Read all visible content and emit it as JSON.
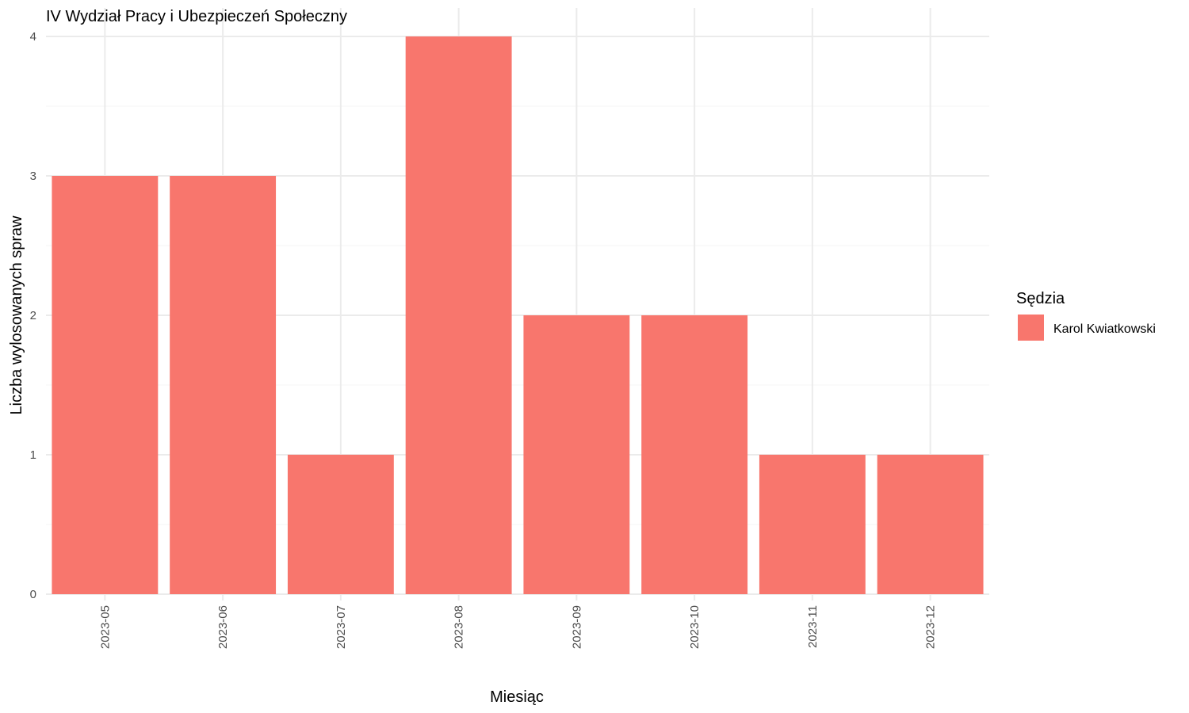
{
  "chart_data": {
    "type": "bar",
    "title": "IV Wydział Pracy i Ubezpieczeń Społeczny",
    "xlabel": "Miesiąc",
    "ylabel": "Liczba wylosowanych spraw",
    "categories": [
      "2023-05",
      "2023-06",
      "2023-07",
      "2023-08",
      "2023-09",
      "2023-10",
      "2023-11",
      "2023-12"
    ],
    "series": [
      {
        "name": "Karol Kwiatkowski",
        "values": [
          3,
          3,
          1,
          4,
          2,
          2,
          1,
          1
        ],
        "color": "#F8766D"
      }
    ],
    "ylim": [
      0,
      4
    ],
    "yticks": [
      0,
      1,
      2,
      3,
      4
    ],
    "grid": true,
    "legend": {
      "title": "Sędzia",
      "position": "right"
    }
  }
}
